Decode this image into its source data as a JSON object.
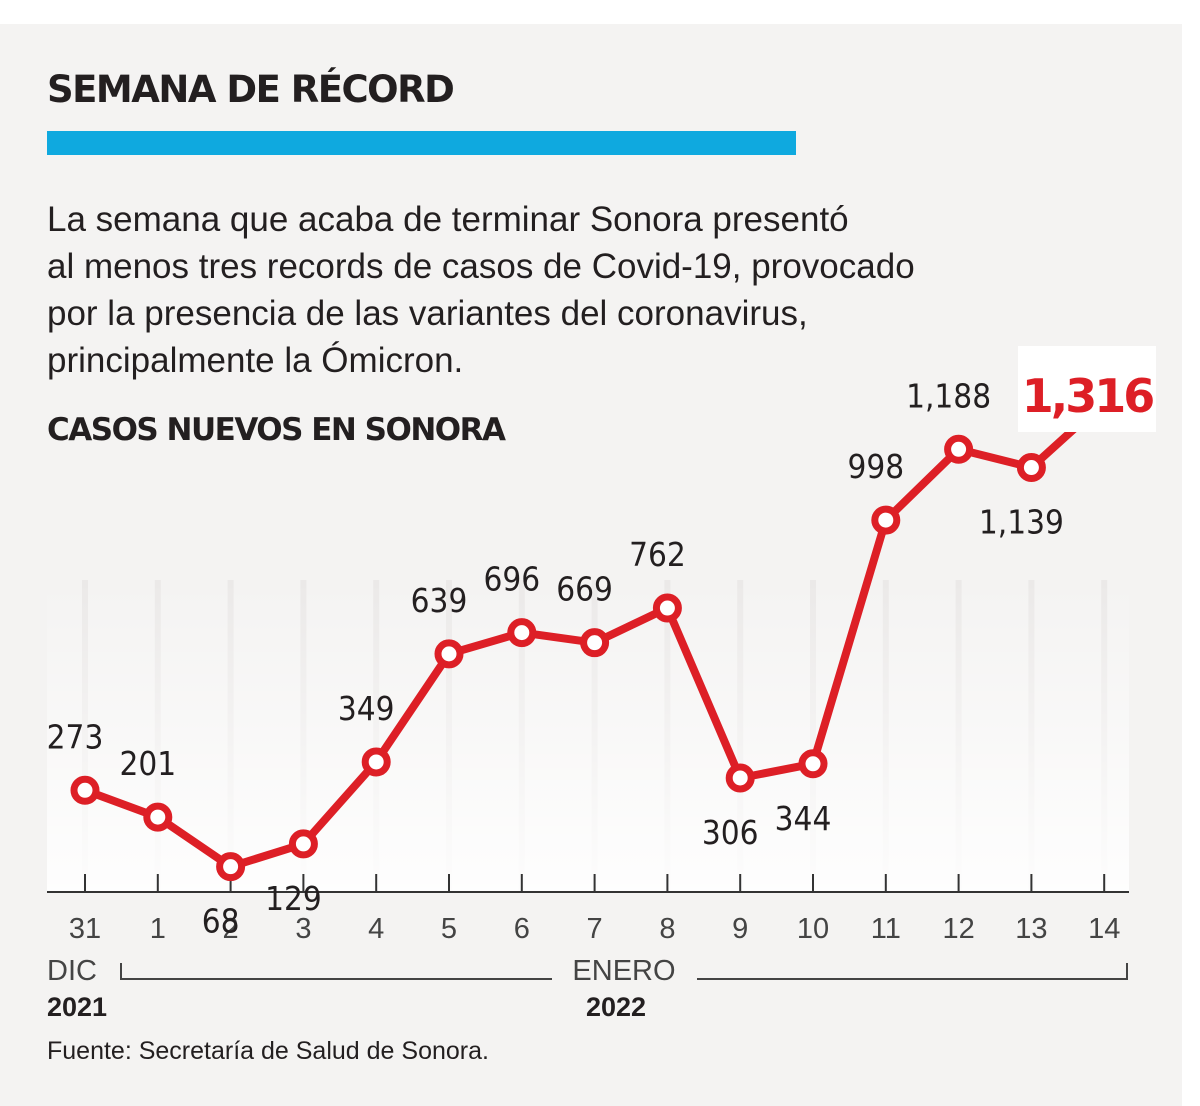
{
  "header": {
    "title": "SEMANA DE RÉCORD",
    "accent_color": "#0fa9df"
  },
  "intro": {
    "lines": [
      "La semana que acaba de terminar Sonora presentó",
      "al menos tres records de casos de Covid-19, provocado",
      "por la presencia de las variantes del coronavirus,",
      "principalmente la Ómicron."
    ]
  },
  "subtitle": "CASOS NUEVOS EN SONORA",
  "source": "Fuente: Secretaría de Salud de Sonora.",
  "chart_data": {
    "type": "line",
    "categories": [
      "31",
      "1",
      "2",
      "3",
      "4",
      "5",
      "6",
      "7",
      "8",
      "9",
      "10",
      "11",
      "12",
      "13",
      "14"
    ],
    "values": [
      273,
      201,
      68,
      129,
      349,
      639,
      696,
      669,
      762,
      306,
      344,
      998,
      1188,
      1139,
      1316
    ],
    "value_labels": [
      "273",
      "201",
      "68",
      "129",
      "349",
      "639",
      "696",
      "669",
      "762",
      "306",
      "344",
      "998",
      "1,188",
      "1,139",
      "1,316"
    ],
    "label_positions": [
      "above",
      "above",
      "below",
      "below",
      "above",
      "above",
      "above",
      "above",
      "above",
      "below",
      "below",
      "above",
      "above",
      "below",
      "callout"
    ],
    "highlight_index": 14,
    "line_color": "#dd1f26",
    "highlight_color": "#dd1f26",
    "ylim": [
      0,
      1500
    ],
    "grid": false,
    "periods": [
      {
        "month": "DIC",
        "year": "2021"
      },
      {
        "month": "ENERO",
        "year": "2022"
      }
    ]
  }
}
